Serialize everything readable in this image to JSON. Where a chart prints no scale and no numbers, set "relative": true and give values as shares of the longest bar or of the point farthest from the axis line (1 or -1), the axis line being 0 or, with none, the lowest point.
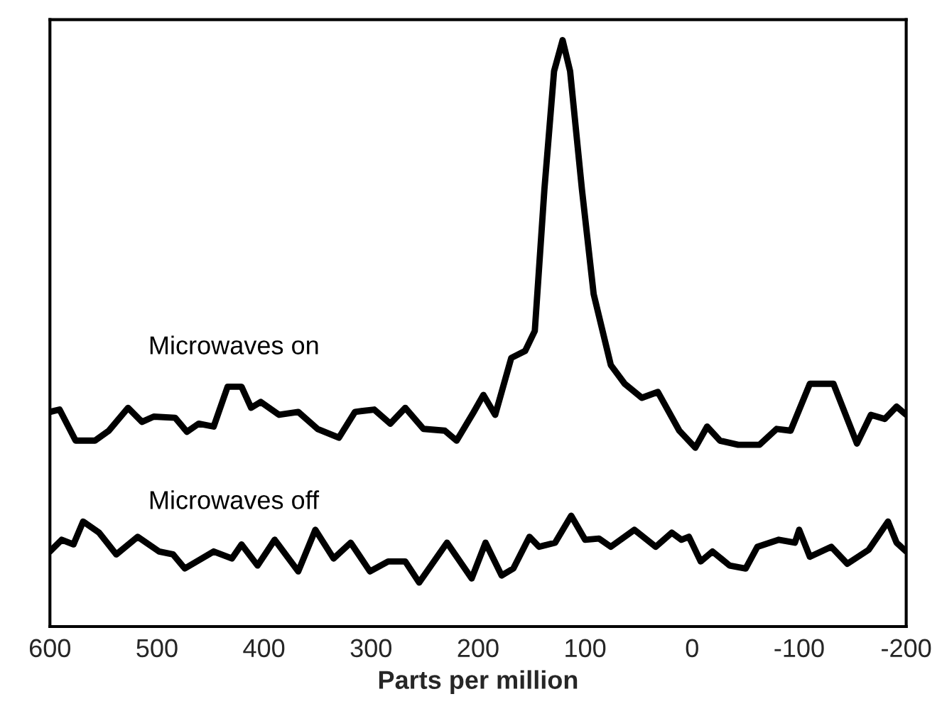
{
  "chart_data": {
    "type": "line",
    "relative": true,
    "xlabel": "Parts per million",
    "xlim": [
      600,
      -200
    ],
    "xticks": [
      600,
      500,
      400,
      300,
      200,
      100,
      0,
      -100,
      -200
    ],
    "grid": false,
    "legend": false,
    "marker": "none",
    "line_style": "solid",
    "tick_labels": "x",
    "series": [
      {
        "name": "Microwaves on",
        "color": "#000000",
        "x": [
          600,
          591,
          576,
          558,
          545,
          527,
          514,
          503,
          483,
          472,
          461,
          447,
          434,
          421,
          412,
          403,
          386,
          368,
          350,
          330,
          315,
          297,
          282,
          268,
          251,
          231,
          220,
          204,
          195,
          184,
          169,
          156,
          147,
          138,
          129,
          121,
          114,
          103,
          92,
          76,
          63,
          47,
          32,
          12,
          -3,
          -14,
          -26,
          -43,
          -63,
          -79,
          -92,
          -110,
          -132,
          -154,
          -167,
          -180,
          -191,
          -200
        ],
        "values": [
          0.366,
          0.37,
          0.317,
          0.317,
          0.334,
          0.373,
          0.349,
          0.358,
          0.356,
          0.332,
          0.346,
          0.341,
          0.409,
          0.409,
          0.373,
          0.383,
          0.361,
          0.366,
          0.337,
          0.322,
          0.366,
          0.37,
          0.346,
          0.373,
          0.337,
          0.334,
          0.317,
          0.366,
          0.395,
          0.361,
          0.458,
          0.47,
          0.504,
          0.746,
          0.947,
          1.0,
          0.947,
          0.746,
          0.567,
          0.446,
          0.414,
          0.39,
          0.4,
          0.334,
          0.305,
          0.341,
          0.317,
          0.31,
          0.31,
          0.337,
          0.334,
          0.414,
          0.414,
          0.312,
          0.361,
          0.354,
          0.375,
          0.361
        ]
      },
      {
        "name": "Microwaves off",
        "color": "#000000",
        "x": [
          600,
          589,
          578,
          569,
          554,
          538,
          518,
          498,
          485,
          474,
          447,
          430,
          421,
          406,
          390,
          368,
          352,
          335,
          319,
          301,
          284,
          268,
          255,
          229,
          206,
          193,
          178,
          167,
          152,
          143,
          128,
          113,
          100,
          87,
          76,
          54,
          34,
          19,
          10,
          3,
          -8,
          -19,
          -35,
          -50,
          -61,
          -81,
          -96,
          -100,
          -110,
          -130,
          -145,
          -165,
          -183,
          -191,
          -200
        ],
        "values": [
          0.128,
          0.148,
          0.14,
          0.179,
          0.16,
          0.123,
          0.153,
          0.128,
          0.123,
          0.099,
          0.128,
          0.116,
          0.14,
          0.104,
          0.148,
          0.094,
          0.165,
          0.116,
          0.143,
          0.094,
          0.111,
          0.111,
          0.075,
          0.143,
          0.082,
          0.143,
          0.087,
          0.099,
          0.153,
          0.136,
          0.143,
          0.189,
          0.148,
          0.15,
          0.136,
          0.165,
          0.136,
          0.16,
          0.148,
          0.153,
          0.111,
          0.128,
          0.104,
          0.099,
          0.136,
          0.148,
          0.143,
          0.165,
          0.119,
          0.136,
          0.107,
          0.131,
          0.179,
          0.143,
          0.128
        ]
      }
    ]
  }
}
